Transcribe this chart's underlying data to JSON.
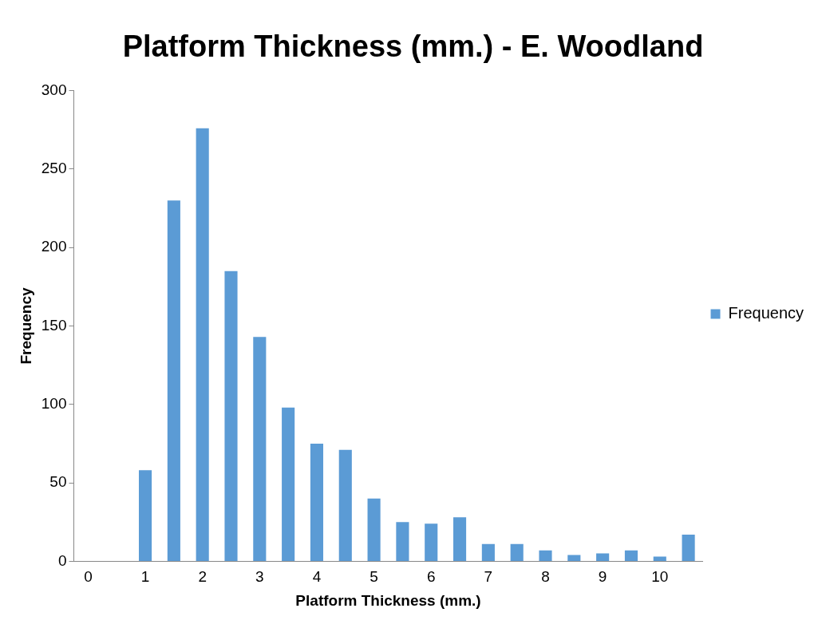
{
  "chart_data": {
    "type": "bar",
    "title": "Platform Thickness (mm.) - E. Woodland",
    "xlabel": "Platform Thickness (mm.)",
    "ylabel": "Frequency",
    "categories": [
      "0",
      null,
      "1",
      null,
      "2",
      null,
      "3",
      null,
      "4",
      null,
      "5",
      null,
      "6",
      null,
      "7",
      null,
      "8",
      null,
      "9",
      null,
      "10",
      null
    ],
    "series": [
      {
        "name": "Frequency",
        "color": "#5b9bd5",
        "values": [
          0,
          0,
          58,
          230,
          276,
          185,
          143,
          98,
          75,
          71,
          40,
          25,
          24,
          28,
          11,
          11,
          7,
          4,
          5,
          7,
          3,
          17
        ]
      }
    ],
    "ylim": [
      0,
      300
    ],
    "yticks": [
      0,
      50,
      100,
      150,
      200,
      250,
      300
    ],
    "grid": false,
    "legend": "right"
  }
}
